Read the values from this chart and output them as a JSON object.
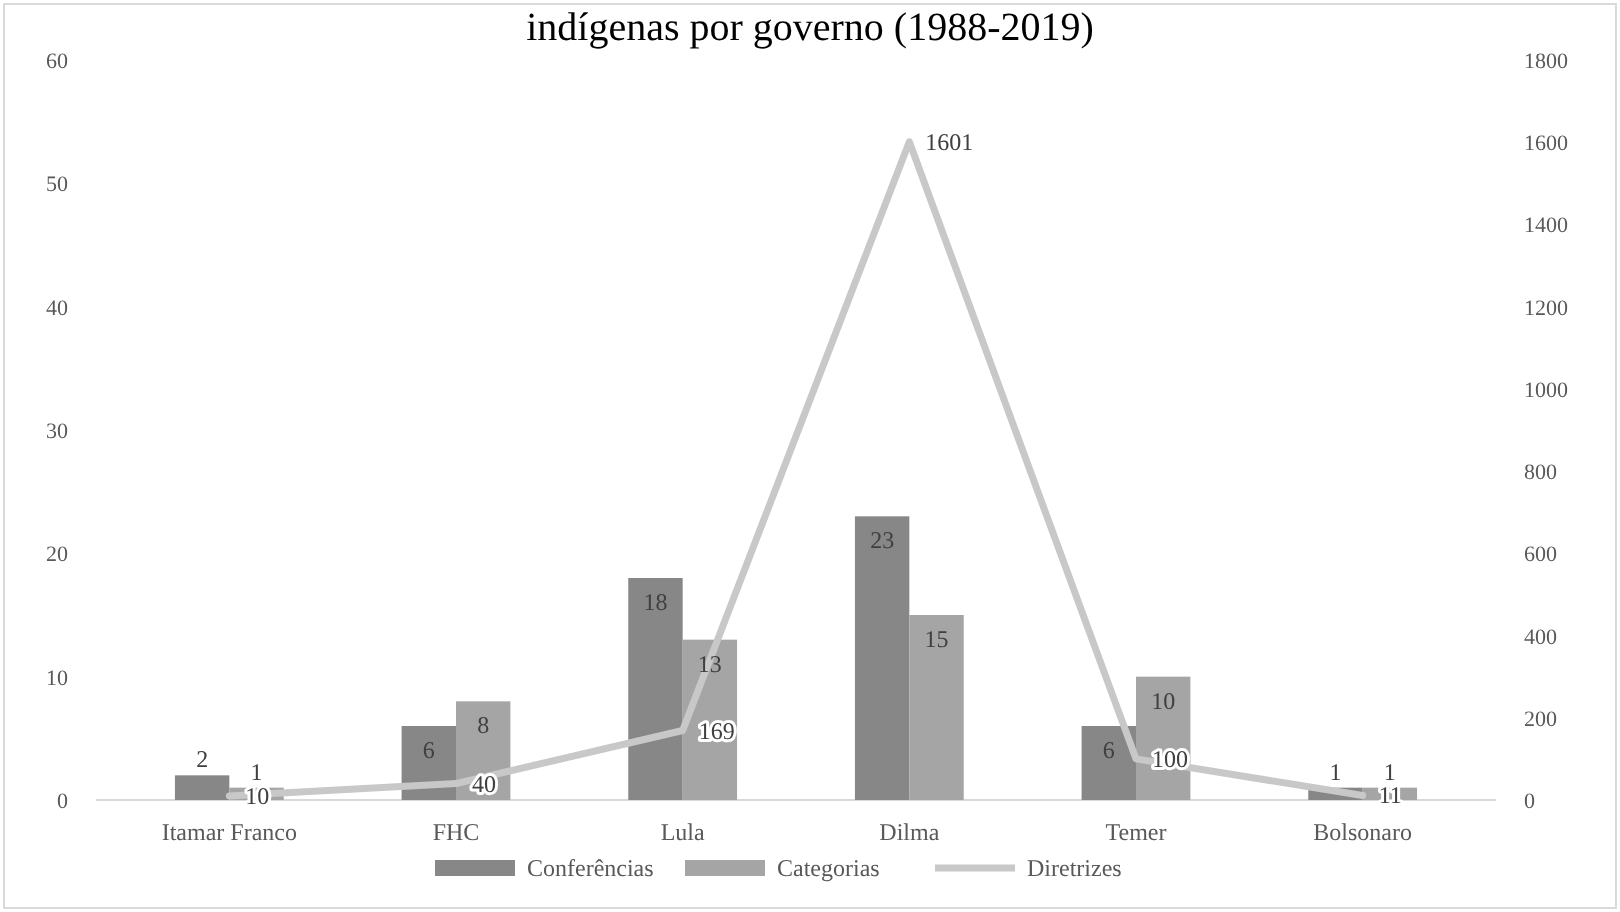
{
  "chart_data": {
    "type": "bar",
    "title": "indígenas por governo (1988-2019)",
    "categories": [
      "Itamar Franco",
      "FHC",
      "Lula",
      "Dilma",
      "Temer",
      "Bolsonaro"
    ],
    "series": [
      {
        "name": "Conferências",
        "color": "#878787",
        "values": [
          2,
          6,
          18,
          23,
          6,
          1
        ]
      },
      {
        "name": "Categorias",
        "color": "#a5a5a5",
        "values": [
          1,
          8,
          13,
          15,
          10,
          1
        ]
      },
      {
        "name": "Diretrizes",
        "type": "line",
        "axis": "y2",
        "color": "#c8c8c8",
        "values": [
          10,
          40,
          169,
          1601,
          100,
          11
        ]
      }
    ],
    "ylim": [
      0,
      60
    ],
    "yticks": [
      0,
      10,
      20,
      30,
      40,
      50,
      60
    ],
    "y2lim": [
      0,
      1800
    ],
    "y2ticks": [
      0,
      200,
      400,
      600,
      800,
      1000,
      1200,
      1400,
      1600,
      1800
    ],
    "data_labels": true,
    "legend": "bottom",
    "grid": false
  }
}
